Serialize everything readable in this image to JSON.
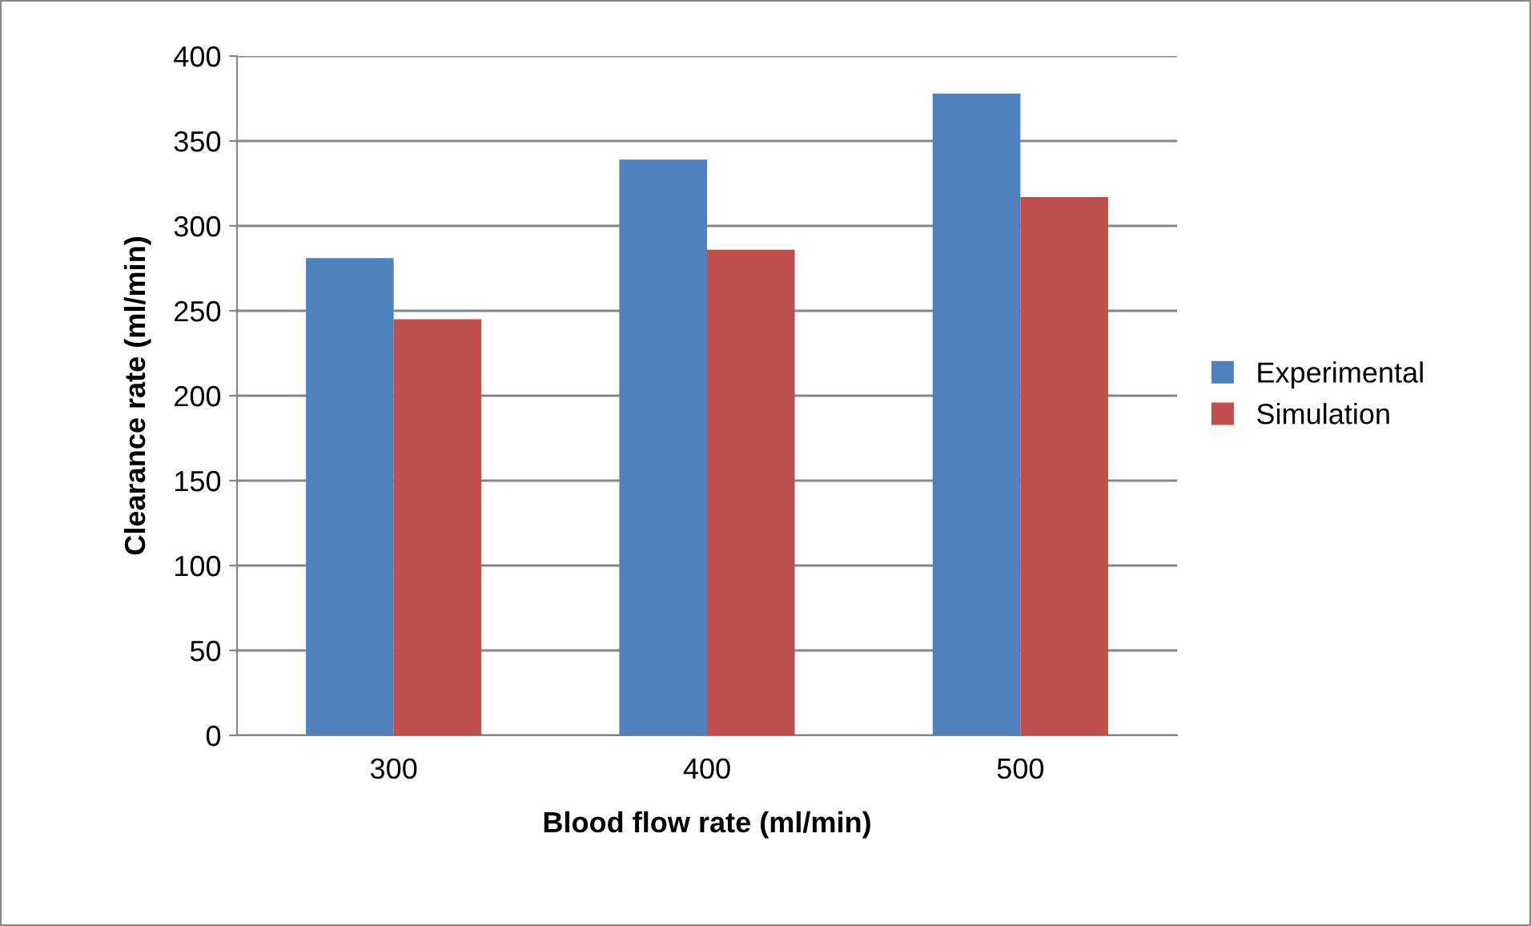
{
  "chart_data": {
    "type": "bar",
    "xlabel": "Blood flow rate (ml/min)",
    "ylabel": "Clearance rate (ml/min)",
    "categories": [
      "300",
      "400",
      "500"
    ],
    "series": [
      {
        "name": "Experimental",
        "color": "#4f81bd",
        "values": [
          281,
          339,
          378
        ]
      },
      {
        "name": "Simulation",
        "color": "#c0504d",
        "values": [
          245,
          286,
          317
        ]
      }
    ],
    "ylim": [
      0,
      400
    ],
    "yticks": [
      0,
      50,
      100,
      150,
      200,
      250,
      300,
      350,
      400
    ],
    "grid": "y",
    "legend": "right"
  }
}
